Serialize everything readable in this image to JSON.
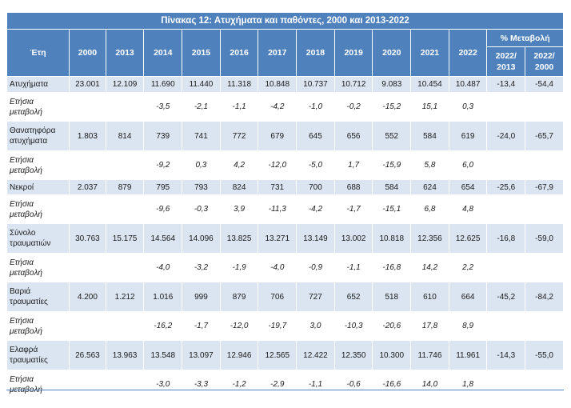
{
  "title": "Πίνακας 12: Ατυχήματα και παθόντες, 2000 και 2013-2022",
  "header": {
    "years_label": "Έτη",
    "years": [
      "2000",
      "2013",
      "2014",
      "2015",
      "2016",
      "2017",
      "2018",
      "2019",
      "2020",
      "2021",
      "2022"
    ],
    "change_label": "% Μεταβολή",
    "change_cols": [
      [
        "2022/",
        "2013"
      ],
      [
        "2022/",
        "2000"
      ]
    ]
  },
  "change_row_label": [
    "Ετήσια",
    "μεταβολή"
  ],
  "groups": [
    {
      "label": [
        "Ατυχήματα"
      ],
      "values": [
        "23.001",
        "12.109",
        "11.690",
        "11.440",
        "11.318",
        "10.848",
        "10.737",
        "10.712",
        "9.083",
        "10.454",
        "10.487"
      ],
      "pct": [
        "-13,4",
        "-54,4"
      ],
      "annual": [
        "",
        "",
        "-3,5",
        "-2,1",
        "-1,1",
        "-4,2",
        "-1,0",
        "-0,2",
        "-15,2",
        "15,1",
        "0,3"
      ]
    },
    {
      "label": [
        "Θανατηφόρα",
        "ατυχήματα"
      ],
      "values": [
        "1.803",
        "814",
        "739",
        "741",
        "772",
        "679",
        "645",
        "656",
        "552",
        "584",
        "619"
      ],
      "pct": [
        "-24,0",
        "-65,7"
      ],
      "annual": [
        "",
        "",
        "-9,2",
        "0,3",
        "4,2",
        "-12,0",
        "-5,0",
        "1,7",
        "-15,9",
        "5,8",
        "6,0"
      ]
    },
    {
      "label": [
        "Νεκροί"
      ],
      "values": [
        "2.037",
        "879",
        "795",
        "793",
        "824",
        "731",
        "700",
        "688",
        "584",
        "624",
        "654"
      ],
      "pct": [
        "-25,6",
        "-67,9"
      ],
      "annual": [
        "",
        "",
        "-9,6",
        "-0,3",
        "3,9",
        "-11,3",
        "-4,2",
        "-1,7",
        "-15,1",
        "6,8",
        "4,8"
      ]
    },
    {
      "label": [
        "Σύνολο",
        "τραυματιών"
      ],
      "values": [
        "30.763",
        "15.175",
        "14.564",
        "14.096",
        "13.825",
        "13.271",
        "13.149",
        "13.002",
        "10.818",
        "12.356",
        "12.625"
      ],
      "pct": [
        "-16,8",
        "-59,0"
      ],
      "annual": [
        "",
        "",
        "-4,0",
        "-3,2",
        "-1,9",
        "-4,0",
        "-0,9",
        "-1,1",
        "-16,8",
        "14,2",
        "2,2"
      ]
    },
    {
      "label": [
        "Βαριά",
        "τραυματίες"
      ],
      "values": [
        "4.200",
        "1.212",
        "1.016",
        "999",
        "879",
        "706",
        "727",
        "652",
        "518",
        "610",
        "664"
      ],
      "pct": [
        "-45,2",
        "-84,2"
      ],
      "annual": [
        "",
        "",
        "-16,2",
        "-1,7",
        "-12,0",
        "-19,7",
        "3,0",
        "-10,3",
        "-20,6",
        "17,8",
        "8,9"
      ]
    },
    {
      "label": [
        "Ελαφρά",
        "τραυματίες"
      ],
      "values": [
        "26.563",
        "13.963",
        "13.548",
        "13.097",
        "12.946",
        "12.565",
        "12.422",
        "12.350",
        "10.300",
        "11.746",
        "11.961"
      ],
      "pct": [
        "-14,3",
        "-55,0"
      ],
      "annual": [
        "",
        "",
        "-3,0",
        "-3,3",
        "-1,2",
        "-2,9",
        "-1,1",
        "-0,6",
        "-16,6",
        "14,0",
        "1,8"
      ]
    }
  ]
}
